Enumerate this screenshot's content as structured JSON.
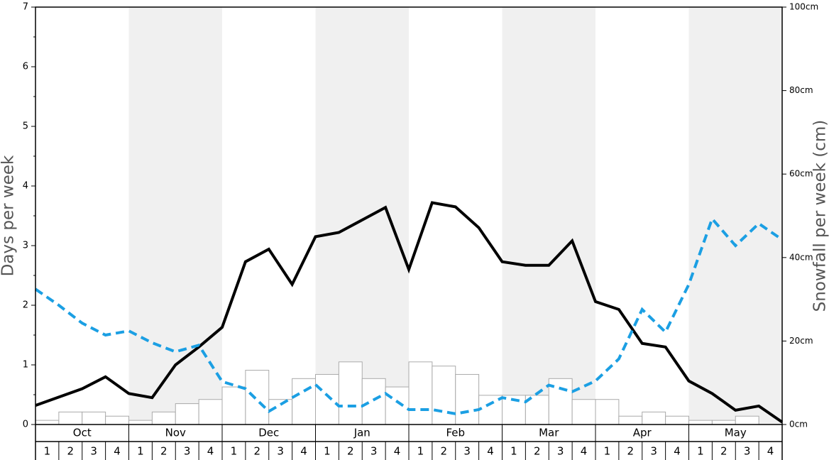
{
  "chart_data": {
    "type": "line",
    "ylabel": "Days per week",
    "y2label": "Snowfall per week (cm)",
    "ylim": [
      0,
      7
    ],
    "yticks": [
      0,
      1,
      2,
      3,
      4,
      5,
      6,
      7
    ],
    "yminorticks": [
      0.5,
      1.5,
      2.5,
      3.5,
      4.5,
      5.5,
      6.5
    ],
    "y2lim": [
      0,
      100
    ],
    "y2ticks": [
      {
        "value": 0,
        "label": "0cm"
      },
      {
        "value": 20,
        "label": "20cm"
      },
      {
        "value": 40,
        "label": "40cm"
      },
      {
        "value": 60,
        "label": "60cm"
      },
      {
        "value": 80,
        "label": "80cm"
      },
      {
        "value": 100,
        "label": "100cm"
      }
    ],
    "months": [
      "Oct",
      "Nov",
      "Dec",
      "Jan",
      "Feb",
      "Mar",
      "Apr",
      "May"
    ],
    "categories": [
      "1",
      "2",
      "3",
      "4",
      "1",
      "2",
      "3",
      "4",
      "1",
      "2",
      "3",
      "4",
      "1",
      "2",
      "3",
      "4",
      "1",
      "2",
      "3",
      "4",
      "1",
      "2",
      "3",
      "4",
      "1",
      "2",
      "3",
      "4",
      "1",
      "2",
      "3",
      "4"
    ],
    "xlim": [
      0,
      32
    ],
    "x": [
      0,
      1,
      2,
      3,
      4,
      5,
      6,
      7,
      8,
      9,
      10,
      11,
      12,
      13,
      14,
      15,
      16,
      17,
      18,
      19,
      20,
      21,
      22,
      23,
      24,
      25,
      26,
      27,
      28,
      29,
      30,
      31,
      32
    ],
    "series": [
      {
        "type": "bar",
        "axis": "y2",
        "color": "#ffffff",
        "values": [
          1,
          3,
          3,
          2,
          1,
          3,
          5,
          6,
          9,
          13,
          6,
          11,
          12,
          15,
          11,
          9,
          15,
          14,
          12,
          7,
          7,
          7,
          11,
          6,
          6,
          2,
          3,
          2,
          1,
          1,
          2,
          0
        ]
      },
      {
        "type": "line",
        "color": "#000000",
        "dashed": false,
        "values": [
          0.32,
          0.46,
          0.6,
          0.8,
          0.52,
          0.45,
          1.0,
          1.3,
          1.63,
          2.73,
          2.94,
          2.35,
          3.15,
          3.22,
          3.43,
          3.64,
          2.6,
          3.72,
          3.65,
          3.3,
          2.73,
          2.67,
          2.67,
          3.08,
          2.06,
          1.93,
          1.36,
          1.3,
          0.73,
          0.52,
          0.24,
          0.31,
          0.04
        ]
      },
      {
        "type": "line",
        "color": "#1b9fe3",
        "dashed": true,
        "values": [
          2.27,
          2.0,
          1.7,
          1.5,
          1.57,
          1.37,
          1.22,
          1.33,
          0.72,
          0.6,
          0.22,
          0.45,
          0.67,
          0.31,
          0.31,
          0.52,
          0.25,
          0.25,
          0.18,
          0.25,
          0.45,
          0.38,
          0.66,
          0.55,
          0.73,
          1.1,
          1.93,
          1.55,
          2.35,
          3.45,
          3.0,
          3.37,
          3.1
        ]
      }
    ]
  }
}
